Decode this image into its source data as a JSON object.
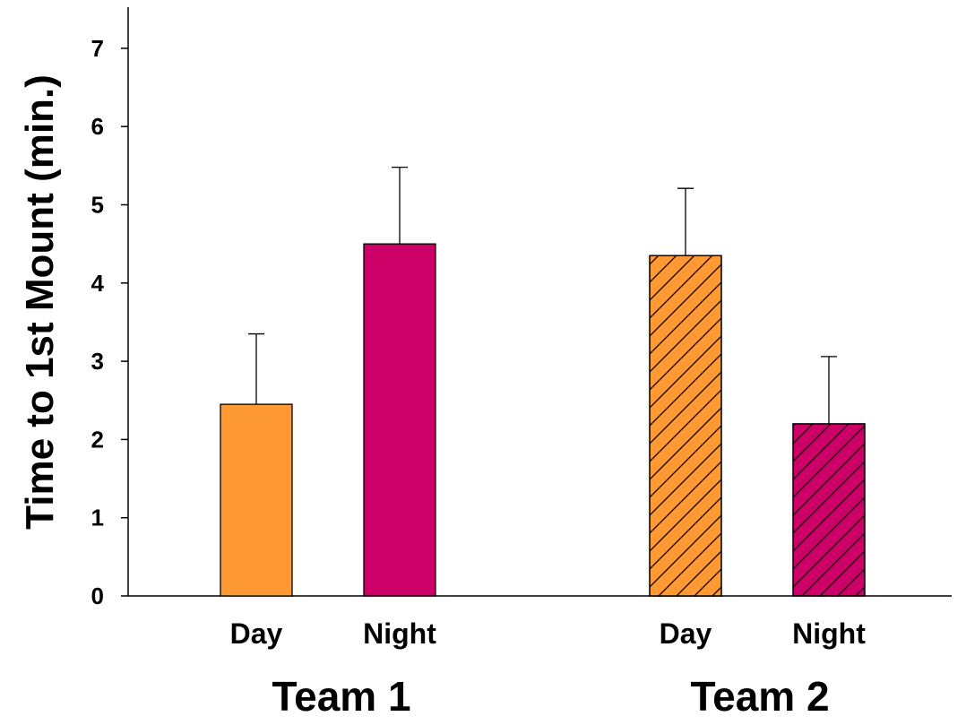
{
  "chart_data": {
    "type": "bar",
    "title": "",
    "ylabel": "Time to 1st Mount (min.)",
    "xlabel": "",
    "ylim": [
      0,
      7.5
    ],
    "yticks": [
      0,
      1,
      2,
      3,
      4,
      5,
      6,
      7
    ],
    "grid": false,
    "groups": [
      {
        "name": "Team 1",
        "bars": [
          {
            "label": "Day",
            "value": 2.45,
            "error": 0.9,
            "color": "#FF9933",
            "hatched": false
          },
          {
            "label": "Night",
            "value": 4.5,
            "error": 0.98,
            "color": "#CC0066",
            "hatched": false
          }
        ]
      },
      {
        "name": "Team 2",
        "bars": [
          {
            "label": "Day",
            "value": 4.35,
            "error": 0.86,
            "color": "#FF9933",
            "hatched": true
          },
          {
            "label": "Night",
            "value": 2.2,
            "error": 0.86,
            "color": "#CC0066",
            "hatched": true
          }
        ]
      }
    ]
  }
}
